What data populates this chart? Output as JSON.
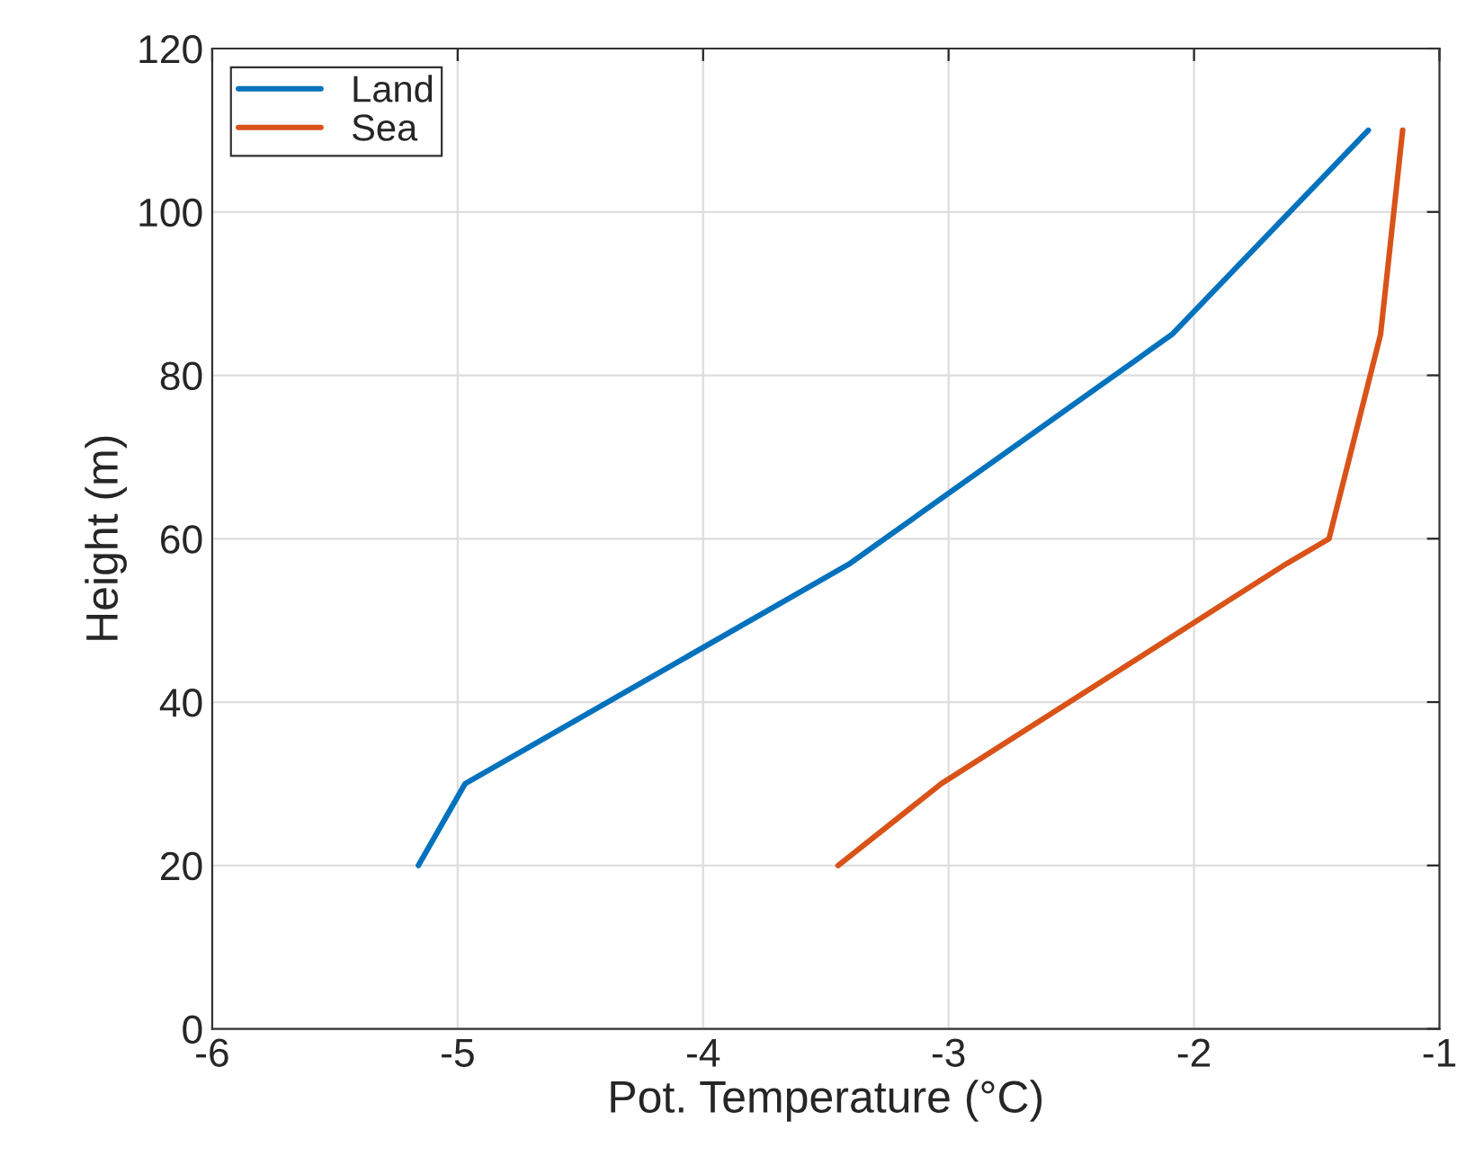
{
  "chart_data": {
    "type": "line",
    "xlabel": "Pot. Temperature (°C)",
    "ylabel": "Height (m)",
    "series": [
      {
        "name": "Land",
        "color": "#0072bd",
        "x": [
          -5.16,
          -4.97,
          -3.4,
          -3.26,
          -2.09,
          -1.29
        ],
        "values": [
          20,
          30,
          57,
          60,
          85,
          110
        ]
      },
      {
        "name": "Sea",
        "color": "#d95319",
        "x": [
          -3.45,
          -3.03,
          -1.62,
          -1.45,
          -1.24,
          -1.15
        ],
        "values": [
          20,
          30,
          57,
          60,
          85,
          110
        ]
      }
    ],
    "xlim": [
      -6,
      -1
    ],
    "xticks": [
      -6,
      -5,
      -4,
      -3,
      -2,
      -1
    ],
    "ylim": [
      0,
      120
    ],
    "yticks": [
      0,
      20,
      40,
      60,
      80,
      100,
      120
    ],
    "grid": true,
    "legend": "top left",
    "marker": "none",
    "line_style": "solid"
  }
}
